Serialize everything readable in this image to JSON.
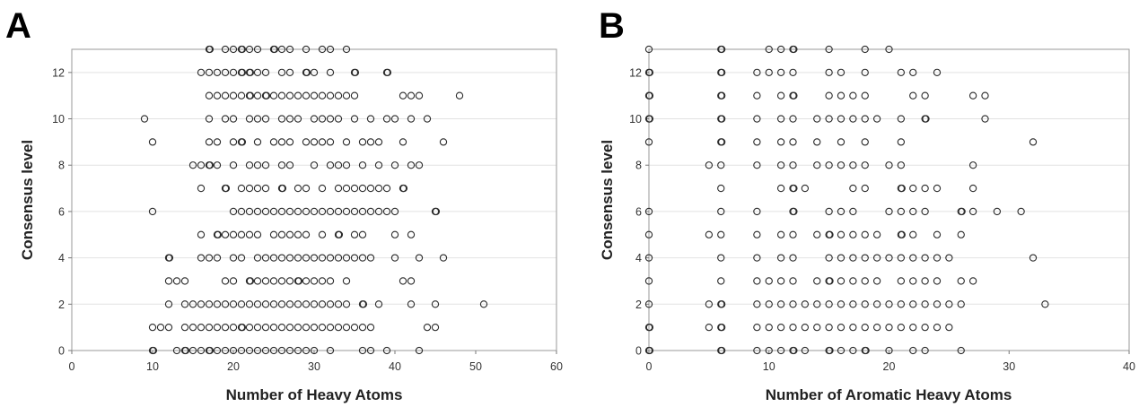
{
  "chart_data": [
    {
      "type": "scatter",
      "panel_label": "A",
      "xlabel": "Number of Heavy Atoms",
      "ylabel": "Consensus level",
      "xlim": [
        0,
        60
      ],
      "ylim": [
        0,
        13
      ],
      "xticks": [
        0,
        10,
        20,
        30,
        40,
        50,
        60
      ],
      "yticks": [
        0,
        2,
        4,
        6,
        8,
        10,
        12
      ],
      "grid": "horizontal",
      "marker": "open-circle",
      "rows": [
        {
          "y": 13,
          "x": [
            17,
            17,
            19,
            20,
            21,
            21,
            22,
            23,
            25,
            25,
            26,
            27,
            29,
            31,
            32,
            34
          ]
        },
        {
          "y": 12,
          "x": [
            16,
            17,
            18,
            19,
            20,
            21,
            21,
            22,
            22,
            23,
            24,
            26,
            27,
            29,
            29,
            30,
            32,
            35,
            35,
            39,
            39
          ]
        },
        {
          "y": 11,
          "x": [
            17,
            18,
            19,
            20,
            21,
            22,
            22,
            23,
            24,
            24,
            25,
            26,
            27,
            28,
            29,
            30,
            31,
            32,
            33,
            34,
            35,
            41,
            42,
            43,
            48
          ]
        },
        {
          "y": 10,
          "x": [
            9,
            17,
            19,
            20,
            22,
            23,
            24,
            26,
            27,
            28,
            30,
            31,
            32,
            33,
            35,
            37,
            39,
            40,
            42,
            44
          ]
        },
        {
          "y": 9,
          "x": [
            10,
            17,
            18,
            20,
            21,
            21,
            23,
            25,
            26,
            27,
            29,
            30,
            31,
            32,
            34,
            36,
            37,
            38,
            41,
            46
          ]
        },
        {
          "y": 8,
          "x": [
            15,
            16,
            17,
            17,
            18,
            20,
            22,
            23,
            24,
            26,
            27,
            30,
            32,
            33,
            34,
            36,
            38,
            40,
            42,
            43
          ]
        },
        {
          "y": 7,
          "x": [
            16,
            19,
            19,
            21,
            22,
            23,
            24,
            26,
            26,
            28,
            29,
            31,
            33,
            34,
            35,
            36,
            37,
            38,
            39,
            41,
            41
          ]
        },
        {
          "y": 6,
          "x": [
            10,
            20,
            21,
            22,
            23,
            24,
            25,
            26,
            27,
            28,
            29,
            30,
            31,
            32,
            33,
            34,
            35,
            36,
            37,
            38,
            39,
            40,
            45,
            45
          ]
        },
        {
          "y": 5,
          "x": [
            16,
            18,
            18,
            19,
            20,
            21,
            22,
            23,
            25,
            26,
            27,
            28,
            29,
            31,
            33,
            33,
            35,
            36,
            40,
            42
          ]
        },
        {
          "y": 4,
          "x": [
            12,
            12,
            16,
            17,
            18,
            20,
            21,
            23,
            24,
            25,
            26,
            27,
            28,
            29,
            30,
            31,
            32,
            33,
            34,
            35,
            36,
            37,
            40,
            43,
            46
          ]
        },
        {
          "y": 3,
          "x": [
            12,
            13,
            14,
            19,
            20,
            22,
            22,
            23,
            24,
            25,
            26,
            27,
            28,
            28,
            29,
            30,
            31,
            32,
            34,
            41,
            42
          ]
        },
        {
          "y": 2,
          "x": [
            12,
            14,
            15,
            16,
            17,
            18,
            19,
            20,
            21,
            22,
            23,
            24,
            25,
            26,
            27,
            28,
            29,
            30,
            31,
            32,
            33,
            34,
            36,
            36,
            38,
            42,
            45,
            51
          ]
        },
        {
          "y": 1,
          "x": [
            10,
            11,
            12,
            14,
            15,
            16,
            17,
            18,
            19,
            20,
            21,
            21,
            22,
            23,
            24,
            25,
            26,
            27,
            28,
            29,
            30,
            31,
            32,
            33,
            34,
            35,
            36,
            37,
            44,
            45
          ]
        },
        {
          "y": 0,
          "x": [
            10,
            10,
            13,
            14,
            14,
            15,
            16,
            17,
            17,
            18,
            19,
            20,
            21,
            22,
            23,
            24,
            25,
            26,
            27,
            28,
            29,
            30,
            32,
            36,
            37,
            39,
            43
          ]
        }
      ]
    },
    {
      "type": "scatter",
      "panel_label": "B",
      "xlabel": "Number of Aromatic Heavy Atoms",
      "ylabel": "Consensus level",
      "xlim": [
        0,
        40
      ],
      "ylim": [
        0,
        13
      ],
      "xticks": [
        0,
        10,
        20,
        30,
        40
      ],
      "yticks": [
        0,
        2,
        4,
        6,
        8,
        10,
        12
      ],
      "grid": "horizontal",
      "marker": "open-circle",
      "rows": [
        {
          "y": 13,
          "x": [
            0,
            6,
            6,
            10,
            11,
            12,
            12,
            15,
            18,
            20
          ]
        },
        {
          "y": 12,
          "x": [
            0,
            0,
            6,
            6,
            9,
            10,
            11,
            12,
            15,
            16,
            18,
            21,
            22,
            24
          ]
        },
        {
          "y": 11,
          "x": [
            0,
            0,
            6,
            6,
            9,
            11,
            12,
            12,
            15,
            16,
            17,
            18,
            22,
            23,
            27,
            28
          ]
        },
        {
          "y": 10,
          "x": [
            0,
            0,
            6,
            6,
            9,
            11,
            12,
            14,
            15,
            16,
            17,
            18,
            19,
            21,
            23,
            23,
            28
          ]
        },
        {
          "y": 9,
          "x": [
            0,
            6,
            6,
            9,
            11,
            12,
            14,
            16,
            18,
            21,
            32
          ]
        },
        {
          "y": 8,
          "x": [
            5,
            6,
            9,
            11,
            12,
            14,
            15,
            16,
            17,
            18,
            20,
            21,
            27
          ]
        },
        {
          "y": 7,
          "x": [
            6,
            11,
            12,
            12,
            13,
            17,
            18,
            21,
            21,
            22,
            23,
            24,
            27
          ]
        },
        {
          "y": 6,
          "x": [
            0,
            6,
            9,
            12,
            12,
            15,
            16,
            17,
            20,
            21,
            22,
            23,
            26,
            26,
            27,
            29,
            31
          ]
        },
        {
          "y": 5,
          "x": [
            0,
            5,
            6,
            9,
            11,
            12,
            14,
            15,
            15,
            16,
            17,
            18,
            19,
            21,
            21,
            22,
            24,
            26
          ]
        },
        {
          "y": 4,
          "x": [
            0,
            6,
            9,
            11,
            12,
            15,
            16,
            17,
            18,
            19,
            20,
            21,
            22,
            23,
            24,
            25,
            32
          ]
        },
        {
          "y": 3,
          "x": [
            0,
            6,
            9,
            10,
            11,
            12,
            14,
            15,
            15,
            16,
            17,
            18,
            19,
            21,
            22,
            23,
            24,
            26,
            27
          ]
        },
        {
          "y": 2,
          "x": [
            0,
            5,
            6,
            6,
            9,
            10,
            11,
            12,
            13,
            14,
            15,
            16,
            17,
            18,
            19,
            20,
            21,
            22,
            23,
            24,
            25,
            26,
            33
          ]
        },
        {
          "y": 1,
          "x": [
            0,
            0,
            5,
            6,
            6,
            9,
            10,
            11,
            12,
            13,
            14,
            15,
            16,
            17,
            18,
            19,
            20,
            21,
            22,
            23,
            24,
            25
          ]
        },
        {
          "y": 0,
          "x": [
            0,
            0,
            6,
            6,
            9,
            10,
            11,
            12,
            12,
            13,
            15,
            15,
            16,
            17,
            18,
            18,
            20,
            22,
            23,
            26
          ]
        }
      ]
    }
  ]
}
